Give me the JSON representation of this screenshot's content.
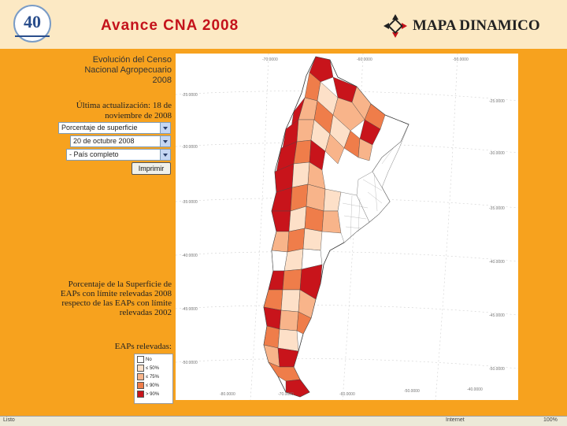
{
  "header": {
    "logo_text": "40",
    "title": "Avance CNA 2008",
    "brand": "MAPA DINAMICO"
  },
  "panel": {
    "title": "Evolución del Censo Nacional Agropecuario 2008",
    "update": "Última actualización: 18 de noviembre de 2008",
    "select_metric": "Porcentaje de superficie",
    "select_date": "20 de octubre 2008",
    "select_region": "- País completo",
    "print_button": "Imprimir",
    "legend_description": "Porcentaje de la Superficie de EAPs con límite relevadas 2008 respecto de las EAPs con límite relevadas 2002",
    "legend_title": "EAPs relevadas:",
    "legend_items": [
      {
        "label": "No",
        "color": "#ffffff"
      },
      {
        "label": "≤ 50%",
        "color": "#fde0c8"
      },
      {
        "label": "≤ 75%",
        "color": "#f8b48a"
      },
      {
        "label": "≤ 90%",
        "color": "#ef7d4a"
      },
      {
        "label": "> 90%",
        "color": "#c8141b"
      }
    ]
  },
  "map": {
    "top_ticks": [
      "-70.0000",
      "-60.0000",
      "-50.0000"
    ],
    "left_ticks": [
      "-25.0000",
      "-30.0000",
      "-35.0000",
      "-40.0000",
      "-45.0000",
      "-50.0000"
    ],
    "right_ticks": [
      "-25.0000",
      "-30.0000",
      "-35.0000",
      "-40.0000",
      "-45.0000",
      "-50.0000"
    ],
    "bottom_ticks": [
      "-80.0000",
      "-70.0000",
      "-60.0000",
      "-50.0000",
      "-40.0000"
    ]
  },
  "status": {
    "left": "Listo",
    "zone": "Internet",
    "zoom": "100%"
  },
  "colors": {
    "accent": "#c4121b",
    "background": "#f7a21e"
  }
}
